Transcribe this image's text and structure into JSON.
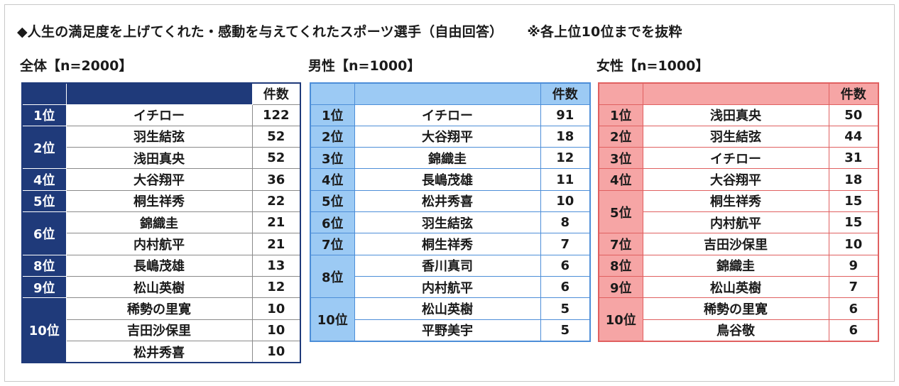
{
  "title": "◆人生の満足度を上げてくれた・感動を与えてくれたスポーツ選手（自由回答）",
  "note": "※各上位10位までを抜粋",
  "count_header": "件数",
  "sections": [
    {
      "label": "全体【n=2000】",
      "rows": [
        {
          "rank": "1位",
          "span": 1,
          "name": "イチロー",
          "count": "122"
        },
        {
          "rank": "2位",
          "span": 2,
          "name": "羽生結弦",
          "count": "52"
        },
        {
          "rank": "",
          "span": 0,
          "name": "浅田真央",
          "count": "52"
        },
        {
          "rank": "4位",
          "span": 1,
          "name": "大谷翔平",
          "count": "36"
        },
        {
          "rank": "5位",
          "span": 1,
          "name": "桐生祥秀",
          "count": "22"
        },
        {
          "rank": "6位",
          "span": 2,
          "name": "錦織圭",
          "count": "21"
        },
        {
          "rank": "",
          "span": 0,
          "name": "内村航平",
          "count": "21"
        },
        {
          "rank": "8位",
          "span": 1,
          "name": "長嶋茂雄",
          "count": "13"
        },
        {
          "rank": "9位",
          "span": 1,
          "name": "松山英樹",
          "count": "12"
        },
        {
          "rank": "10位",
          "span": 3,
          "name": "稀勢の里寛",
          "count": "10"
        },
        {
          "rank": "",
          "span": 0,
          "name": "吉田沙保里",
          "count": "10"
        },
        {
          "rank": "",
          "span": 0,
          "name": "松井秀喜",
          "count": "10"
        }
      ]
    },
    {
      "label": "男性【n=1000】",
      "rows": [
        {
          "rank": "1位",
          "span": 1,
          "name": "イチロー",
          "count": "91"
        },
        {
          "rank": "2位",
          "span": 1,
          "name": "大谷翔平",
          "count": "18"
        },
        {
          "rank": "3位",
          "span": 1,
          "name": "錦織圭",
          "count": "12"
        },
        {
          "rank": "4位",
          "span": 1,
          "name": "長嶋茂雄",
          "count": "11"
        },
        {
          "rank": "5位",
          "span": 1,
          "name": "松井秀喜",
          "count": "10"
        },
        {
          "rank": "6位",
          "span": 1,
          "name": "羽生結弦",
          "count": "8"
        },
        {
          "rank": "7位",
          "span": 1,
          "name": "桐生祥秀",
          "count": "7"
        },
        {
          "rank": "8位",
          "span": 2,
          "name": "香川真司",
          "count": "6"
        },
        {
          "rank": "",
          "span": 0,
          "name": "内村航平",
          "count": "6"
        },
        {
          "rank": "10位",
          "span": 2,
          "name": "松山英樹",
          "count": "5"
        },
        {
          "rank": "",
          "span": 0,
          "name": "平野美宇",
          "count": "5"
        }
      ]
    },
    {
      "label": "女性【n=1000】",
      "rows": [
        {
          "rank": "1位",
          "span": 1,
          "name": "浅田真央",
          "count": "50"
        },
        {
          "rank": "2位",
          "span": 1,
          "name": "羽生結弦",
          "count": "44"
        },
        {
          "rank": "3位",
          "span": 1,
          "name": "イチロー",
          "count": "31"
        },
        {
          "rank": "4位",
          "span": 1,
          "name": "大谷翔平",
          "count": "18"
        },
        {
          "rank": "5位",
          "span": 2,
          "name": "桐生祥秀",
          "count": "15"
        },
        {
          "rank": "",
          "span": 0,
          "name": "内村航平",
          "count": "15"
        },
        {
          "rank": "7位",
          "span": 1,
          "name": "吉田沙保里",
          "count": "10"
        },
        {
          "rank": "8位",
          "span": 1,
          "name": "錦織圭",
          "count": "9"
        },
        {
          "rank": "9位",
          "span": 1,
          "name": "松山英樹",
          "count": "7"
        },
        {
          "rank": "10位",
          "span": 2,
          "name": "稀勢の里寛",
          "count": "6"
        },
        {
          "rank": "",
          "span": 0,
          "name": "鳥谷敬",
          "count": "6"
        }
      ]
    }
  ],
  "colors": {
    "overall": "#1f3a7a",
    "male": "#9ccaf4",
    "female": "#f6a5a5"
  }
}
